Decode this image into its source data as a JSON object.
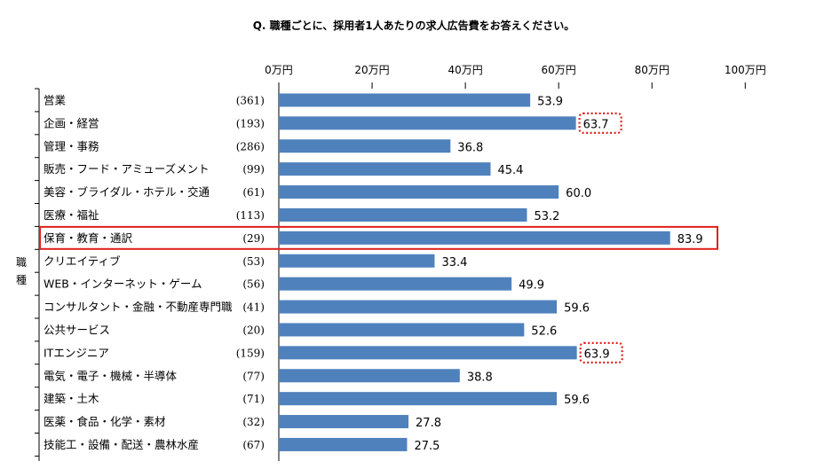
{
  "chart_data": {
    "type": "bar",
    "orientation": "horizontal",
    "title": "Q.  職種ごとに、採用者1人あたりの求人広告費をお答えください。",
    "ylabel": "職種",
    "xlim": [
      0,
      100
    ],
    "x_ticks": [
      "0万円",
      "20万円",
      "40万円",
      "60万円",
      "80万円",
      "100万円"
    ],
    "grid": false,
    "bar_color": "#4f81bd",
    "highlight_row_color": "#e0201b",
    "highlight_value_color": "#e0201b",
    "categories": [
      "営業",
      "企画・経営",
      "管理・事務",
      "販売・フード・アミューズメント",
      "美容・ブライダル・ホテル・交通",
      "医療・福祉",
      "保育・教育・通訳",
      "クリエイティブ",
      "WEB・インターネット・ゲーム",
      "コンサルタント・金融・不動産専門職",
      "公共サービス",
      "ITエンジニア",
      "電気・電子・機械・半導体",
      "建築・土木",
      "医薬・食品・化学・素材",
      "技能工・設備・配送・農林水産"
    ],
    "counts": [
      "(361)",
      "(193)",
      "(286)",
      "(99)",
      "(61)",
      "(113)",
      "(29)",
      "(53)",
      "(56)",
      "(41)",
      "(20)",
      "(159)",
      "(77)",
      "(71)",
      "(32)",
      "(67)"
    ],
    "values": [
      53.9,
      63.7,
      36.8,
      45.4,
      60.0,
      53.2,
      83.9,
      33.4,
      49.9,
      59.6,
      52.6,
      63.9,
      38.8,
      59.6,
      27.8,
      27.5
    ],
    "value_labels": [
      "53.9",
      "63.7",
      "36.8",
      "45.4",
      "60.0",
      "53.2",
      "83.9",
      "33.4",
      "49.9",
      "59.6",
      "52.6",
      "63.9",
      "38.8",
      "59.6",
      "27.8",
      "27.5"
    ],
    "highlighted_rows": [
      6
    ],
    "highlighted_values": [
      1,
      11
    ]
  }
}
